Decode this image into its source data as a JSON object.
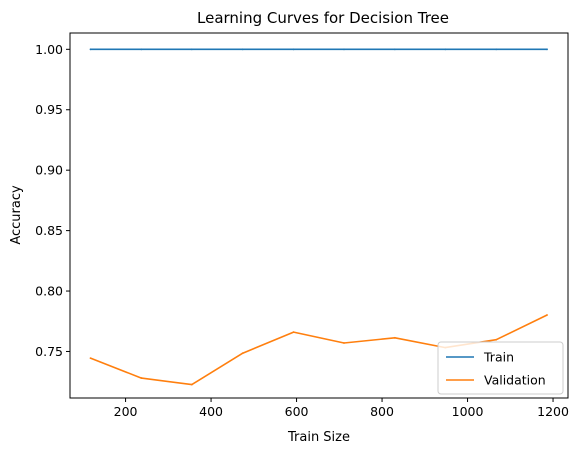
{
  "chart_data": {
    "type": "line",
    "title": "Learning Curves for Decision Tree",
    "xlabel": "Train Size",
    "ylabel": "Accuracy",
    "xlim": [
      70,
      1235
    ],
    "ylim": [
      0.7115,
      1.0135
    ],
    "xticks": [
      200,
      400,
      600,
      800,
      1000,
      1200
    ],
    "yticks": [
      0.75,
      0.8,
      0.85,
      0.9,
      0.95,
      1.0
    ],
    "xtick_labels": [
      "200",
      "400",
      "600",
      "800",
      "1000",
      "1200"
    ],
    "ytick_labels": [
      "0.75",
      "0.80",
      "0.85",
      "0.90",
      "0.95",
      "1.00"
    ],
    "x": [
      118,
      237,
      355,
      474,
      593,
      711,
      830,
      948,
      1067,
      1186
    ],
    "series": [
      {
        "name": "Train",
        "color": "#1f77b4",
        "values": [
          1.0,
          1.0,
          1.0,
          1.0,
          1.0,
          1.0,
          1.0,
          1.0,
          1.0,
          1.0
        ]
      },
      {
        "name": "Validation",
        "color": "#ff7f0e",
        "values": [
          0.7445,
          0.728,
          0.7226,
          0.7486,
          0.766,
          0.757,
          0.7613,
          0.7532,
          0.7597,
          0.7802
        ]
      }
    ],
    "legend": "lower-right",
    "grid": false
  }
}
